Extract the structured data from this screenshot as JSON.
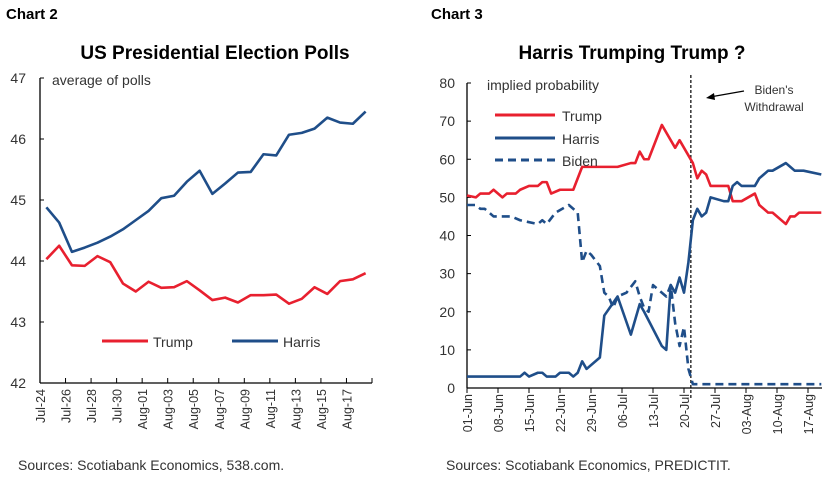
{
  "headers": {
    "left": "Chart 2",
    "right": "Chart 3"
  },
  "colors": {
    "trump": "#e8202f",
    "harris": "#1f4e89",
    "biden": "#1f4e89",
    "axis": "#000000"
  },
  "chart_data": [
    {
      "type": "line",
      "title": "US Presidential Election Polls",
      "ylabel": "average of polls",
      "ylim": [
        42,
        47
      ],
      "yticks": [
        "42",
        "43",
        "44",
        "45",
        "46",
        "47"
      ],
      "categories": [
        "Jul-24",
        "Jul-25",
        "Jul-26",
        "Jul-27",
        "Jul-28",
        "Jul-29",
        "Jul-30",
        "Jul-31",
        "Aug-01",
        "Aug-02",
        "Aug-03",
        "Aug-04",
        "Aug-05",
        "Aug-06",
        "Aug-07",
        "Aug-08",
        "Aug-09",
        "Aug-10",
        "Aug-11",
        "Aug-12",
        "Aug-13",
        "Aug-14",
        "Aug-15",
        "Aug-16",
        "Aug-17",
        "Aug-18"
      ],
      "xtick_labels": [
        "Jul-24",
        "Jul-26",
        "Jul-28",
        "Jul-30",
        "Aug-01",
        "Aug-03",
        "Aug-05",
        "Aug-07",
        "Aug-09",
        "Aug-11",
        "Aug-13",
        "Aug-15",
        "Aug-17"
      ],
      "series": [
        {
          "name": "Trump",
          "color": "#e8202f",
          "style": "solid",
          "values": [
            44.03,
            44.25,
            43.93,
            43.92,
            44.08,
            43.98,
            43.63,
            43.5,
            43.66,
            43.56,
            43.57,
            43.67,
            43.52,
            43.36,
            43.4,
            43.32,
            43.44,
            43.44,
            43.45,
            43.3,
            43.38,
            43.57,
            43.46,
            43.67,
            43.7,
            43.8
          ]
        },
        {
          "name": "Harris",
          "color": "#1f4e89",
          "style": "solid",
          "values": [
            44.88,
            44.63,
            44.15,
            44.22,
            44.3,
            44.4,
            44.52,
            44.67,
            44.82,
            45.03,
            45.07,
            45.3,
            45.48,
            45.1,
            45.27,
            45.45,
            45.46,
            45.75,
            45.73,
            46.07,
            46.1,
            46.17,
            46.35,
            46.27,
            46.25,
            46.45
          ]
        }
      ],
      "legend": "bottom-inside",
      "grid": false,
      "source": "Sources: Scotiabank Economics, 538.com."
    },
    {
      "type": "line",
      "title": "Harris Trumping Trump ?",
      "ylabel": "implied probability",
      "ylim": [
        0,
        80
      ],
      "yticks": [
        "0",
        "10",
        "20",
        "30",
        "40",
        "50",
        "60",
        "70",
        "80"
      ],
      "xlim": [
        "06-01",
        "08-20"
      ],
      "xtick_labels": [
        "01-Jun",
        "08-Jun",
        "15-Jun",
        "22-Jun",
        "29-Jun",
        "06-Jul",
        "13-Jul",
        "20-Jul",
        "27-Jul",
        "03-Aug",
        "10-Aug",
        "17-Aug"
      ],
      "series": [
        {
          "name": "Trump",
          "color": "#e8202f",
          "style": "solid",
          "points": [
            [
              "06-01",
              50.5
            ],
            [
              "06-03",
              50
            ],
            [
              "06-04",
              51
            ],
            [
              "06-06",
              51
            ],
            [
              "06-07",
              52
            ],
            [
              "06-09",
              50
            ],
            [
              "06-10",
              51
            ],
            [
              "06-12",
              51
            ],
            [
              "06-13",
              52
            ],
            [
              "06-15",
              53
            ],
            [
              "06-17",
              53
            ],
            [
              "06-18",
              54
            ],
            [
              "06-19",
              54
            ],
            [
              "06-20",
              51
            ],
            [
              "06-22",
              52
            ],
            [
              "06-25",
              52
            ],
            [
              "06-27",
              58
            ],
            [
              "07-05",
              58
            ],
            [
              "07-08",
              59
            ],
            [
              "07-09",
              59
            ],
            [
              "07-10",
              62
            ],
            [
              "07-11",
              60
            ],
            [
              "07-12",
              60
            ],
            [
              "07-15",
              69
            ],
            [
              "07-18",
              63
            ],
            [
              "07-19",
              65
            ],
            [
              "07-22",
              59
            ],
            [
              "07-23",
              55
            ],
            [
              "07-24",
              57
            ],
            [
              "07-25",
              56
            ],
            [
              "07-26",
              53
            ],
            [
              "07-30",
              53
            ],
            [
              "07-31",
              49
            ],
            [
              "08-02",
              49
            ],
            [
              "08-05",
              51
            ],
            [
              "08-06",
              48
            ],
            [
              "08-08",
              46
            ],
            [
              "08-09",
              46
            ],
            [
              "08-12",
              43
            ],
            [
              "08-13",
              45
            ],
            [
              "08-14",
              45
            ],
            [
              "08-15",
              46
            ],
            [
              "08-20",
              46
            ]
          ]
        },
        {
          "name": "Harris",
          "color": "#1f4e89",
          "style": "solid",
          "points": [
            [
              "06-01",
              3
            ],
            [
              "06-13",
              3
            ],
            [
              "06-14",
              4
            ],
            [
              "06-15",
              3
            ],
            [
              "06-17",
              4
            ],
            [
              "06-18",
              4
            ],
            [
              "06-19",
              3
            ],
            [
              "06-21",
              3
            ],
            [
              "06-22",
              4
            ],
            [
              "06-24",
              4
            ],
            [
              "06-25",
              3
            ],
            [
              "06-26",
              4
            ],
            [
              "06-27",
              7
            ],
            [
              "06-28",
              5
            ],
            [
              "07-01",
              8
            ],
            [
              "07-02",
              19
            ],
            [
              "07-05",
              24
            ],
            [
              "07-08",
              14
            ],
            [
              "07-10",
              22
            ],
            [
              "07-11",
              20
            ],
            [
              "07-15",
              11
            ],
            [
              "07-16",
              10
            ],
            [
              "07-17",
              27
            ],
            [
              "07-18",
              25
            ],
            [
              "07-19",
              29
            ],
            [
              "07-20",
              25
            ],
            [
              "07-21",
              33
            ],
            [
              "07-22",
              44
            ],
            [
              "07-23",
              47
            ],
            [
              "07-24",
              45
            ],
            [
              "07-25",
              46
            ],
            [
              "07-26",
              50
            ],
            [
              "07-29",
              49
            ],
            [
              "07-30",
              49
            ],
            [
              "07-31",
              53
            ],
            [
              "08-01",
              54
            ],
            [
              "08-02",
              53
            ],
            [
              "08-05",
              53
            ],
            [
              "08-06",
              55
            ],
            [
              "08-08",
              57
            ],
            [
              "08-09",
              57
            ],
            [
              "08-12",
              59
            ],
            [
              "08-13",
              58
            ],
            [
              "08-14",
              57
            ],
            [
              "08-16",
              57
            ],
            [
              "08-20",
              56
            ]
          ]
        },
        {
          "name": "Biden",
          "color": "#1f4e89",
          "style": "dashed",
          "points": [
            [
              "06-01",
              48
            ],
            [
              "06-03",
              48
            ],
            [
              "06-04",
              47
            ],
            [
              "06-05",
              47
            ],
            [
              "06-07",
              45
            ],
            [
              "06-11",
              45
            ],
            [
              "06-13",
              44
            ],
            [
              "06-17",
              43
            ],
            [
              "06-18",
              44
            ],
            [
              "06-19",
              43
            ],
            [
              "06-21",
              46
            ],
            [
              "06-24",
              48
            ],
            [
              "06-26",
              46
            ],
            [
              "06-27",
              33
            ],
            [
              "06-28",
              36
            ],
            [
              "06-29",
              35
            ],
            [
              "07-01",
              32
            ],
            [
              "07-02",
              25
            ],
            [
              "07-03",
              24
            ],
            [
              "07-04",
              21
            ],
            [
              "07-05",
              24
            ],
            [
              "07-07",
              25
            ],
            [
              "07-09",
              28
            ],
            [
              "07-10",
              24
            ],
            [
              "07-11",
              21
            ],
            [
              "07-12",
              20
            ],
            [
              "07-13",
              27
            ],
            [
              "07-16",
              24
            ],
            [
              "07-17",
              27
            ],
            [
              "07-18",
              17
            ],
            [
              "07-19",
              11
            ],
            [
              "07-20",
              16
            ],
            [
              "07-21",
              5
            ],
            [
              "07-22",
              1
            ],
            [
              "08-20",
              1
            ]
          ]
        }
      ],
      "annotations": [
        {
          "text_lines": [
            "Biden's",
            "Withdrawal"
          ],
          "x": "07-22",
          "type": "vertical-dashed-line-with-arrow"
        }
      ],
      "legend": "top-left",
      "grid": false,
      "source": "Sources: Scotiabank Economics, PREDICTIT."
    }
  ]
}
